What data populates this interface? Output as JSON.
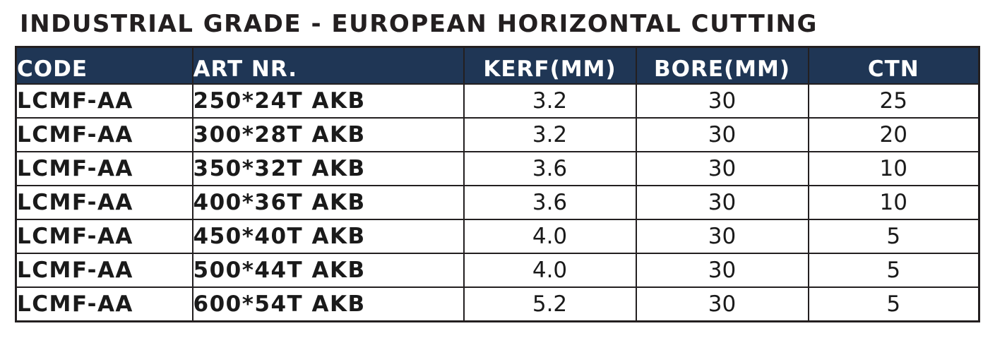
{
  "title": "INDUSTRIAL GRADE - EUROPEAN HORIZONTAL CUTTING",
  "table": {
    "headers": [
      "CODE",
      "ART NR.",
      "KERF(MM)",
      "BORE(MM)",
      "CTN"
    ],
    "rows": [
      [
        "LCMF-AA",
        "250*24T AKB",
        "3.2",
        "30",
        "25"
      ],
      [
        "LCMF-AA",
        "300*28T AKB",
        "3.2",
        "30",
        "20"
      ],
      [
        "LCMF-AA",
        "350*32T AKB",
        "3.6",
        "30",
        "10"
      ],
      [
        "LCMF-AA",
        "400*36T AKB",
        "3.6",
        "30",
        "10"
      ],
      [
        "LCMF-AA",
        "450*40T AKB",
        "4.0",
        "30",
        "5"
      ],
      [
        "LCMF-AA",
        "500*44T AKB",
        "4.0",
        "30",
        "5"
      ],
      [
        "LCMF-AA",
        "600*54T AKB",
        "5.2",
        "30",
        "5"
      ]
    ]
  },
  "colors": {
    "header_background": "#1f3655",
    "header_text": "#ffffff",
    "border": "#231f20",
    "text": "#231f20"
  }
}
